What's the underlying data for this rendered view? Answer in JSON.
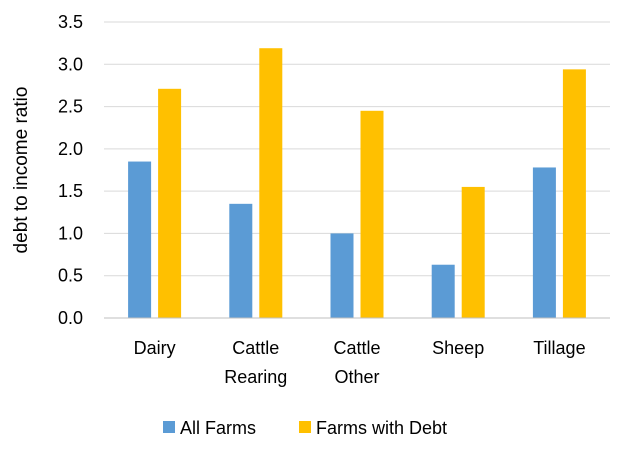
{
  "chart_data": {
    "type": "bar",
    "title": "",
    "xlabel": "",
    "ylabel": "debt to income ratio",
    "ylim": [
      0,
      3.5
    ],
    "yticks": [
      "0.0",
      "0.5",
      "1.0",
      "1.5",
      "2.0",
      "2.5",
      "3.0",
      "3.5"
    ],
    "grid": true,
    "legend_position": "bottom",
    "categories": [
      [
        "Dairy"
      ],
      [
        "Cattle",
        "Rearing"
      ],
      [
        "Cattle",
        "Other"
      ],
      [
        "Sheep"
      ],
      [
        "Tillage"
      ]
    ],
    "series": [
      {
        "name": "All Farms",
        "color": "#5B9BD5",
        "values": [
          1.85,
          1.35,
          1.0,
          0.63,
          1.78
        ]
      },
      {
        "name": "Farms with Debt",
        "color": "#FFC000",
        "values": [
          2.71,
          3.19,
          2.45,
          1.55,
          2.94
        ]
      }
    ],
    "colors": {
      "grid": "#D9D9D9",
      "axis": "#BFBFBF",
      "text": "#000000"
    }
  }
}
